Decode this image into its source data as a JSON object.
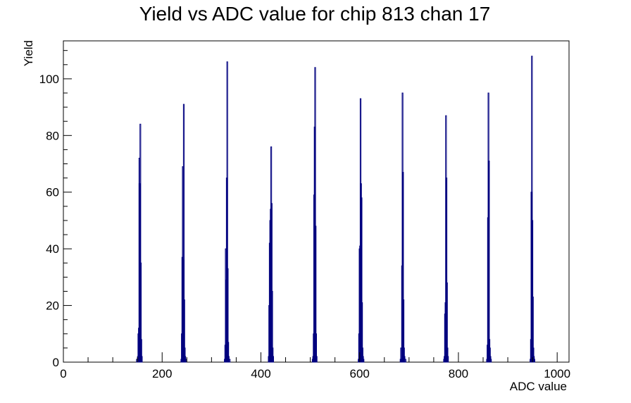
{
  "colors": {
    "series": "#00007f",
    "axis": "#000000",
    "background": "#ffffff"
  },
  "chart_data": {
    "type": "histogram",
    "title": "Yield vs ADC value for chip 813 chan 17",
    "xlabel": "ADC value",
    "ylabel": "Yield",
    "xlim": [
      0,
      1024
    ],
    "ylim": [
      0,
      113.4
    ],
    "grid": false,
    "legend": "none",
    "xticks": [
      0,
      200,
      400,
      600,
      800,
      1000
    ],
    "yticks": [
      0,
      20,
      40,
      60,
      80,
      100
    ],
    "series": [
      {
        "peaks": [
          {
            "bins": [
              [
                148,
                1
              ],
              [
                150,
                2
              ],
              [
                151,
                10
              ],
              [
                152,
                12
              ],
              [
                153,
                72
              ],
              [
                154,
                63
              ],
              [
                155,
                84
              ],
              [
                156,
                35
              ],
              [
                157,
                8
              ],
              [
                158,
                2
              ]
            ]
          },
          {
            "bins": [
              [
                238,
                1
              ],
              [
                239,
                10
              ],
              [
                240,
                37
              ],
              [
                241,
                69
              ],
              [
                242,
                36
              ],
              [
                243,
                91
              ],
              [
                244,
                22
              ],
              [
                245,
                5
              ],
              [
                246,
                2
              ],
              [
                248,
                1
              ]
            ]
          },
          {
            "bins": [
              [
                326,
                1
              ],
              [
                327,
                6
              ],
              [
                328,
                40
              ],
              [
                329,
                29
              ],
              [
                330,
                65
              ],
              [
                331,
                106
              ],
              [
                332,
                33
              ],
              [
                333,
                7
              ],
              [
                334,
                2
              ],
              [
                336,
                1
              ]
            ]
          },
          {
            "bins": [
              [
                415,
                2
              ],
              [
                416,
                20
              ],
              [
                417,
                42
              ],
              [
                418,
                50
              ],
              [
                419,
                54
              ],
              [
                420,
                76
              ],
              [
                421,
                56
              ],
              [
                422,
                25
              ],
              [
                423,
                5
              ],
              [
                424,
                2
              ]
            ]
          },
          {
            "bins": [
              [
                504,
                1
              ],
              [
                505,
                2
              ],
              [
                506,
                10
              ],
              [
                507,
                59
              ],
              [
                508,
                83
              ],
              [
                509,
                104
              ],
              [
                510,
                48
              ],
              [
                511,
                10
              ],
              [
                512,
                2
              ]
            ]
          },
          {
            "bins": [
              [
                597,
                1
              ],
              [
                598,
                10
              ],
              [
                599,
                40
              ],
              [
                600,
                41
              ],
              [
                601,
                93
              ],
              [
                602,
                63
              ],
              [
                603,
                58
              ],
              [
                604,
                21
              ],
              [
                605,
                5
              ],
              [
                606,
                2
              ],
              [
                607,
                1
              ]
            ]
          },
          {
            "bins": [
              [
                682,
                1
              ],
              [
                683,
                5
              ],
              [
                684,
                1
              ],
              [
                685,
                34
              ],
              [
                686,
                95
              ],
              [
                687,
                67
              ],
              [
                688,
                22
              ],
              [
                689,
                5
              ],
              [
                690,
                2
              ],
              [
                692,
                1
              ]
            ]
          },
          {
            "bins": [
              [
                770,
                1
              ],
              [
                771,
                2
              ],
              [
                772,
                17
              ],
              [
                773,
                21
              ],
              [
                774,
                87
              ],
              [
                775,
                65
              ],
              [
                776,
                28
              ],
              [
                777,
                5
              ],
              [
                778,
                2
              ]
            ]
          },
          {
            "bins": [
              [
                857,
                1
              ],
              [
                858,
                6
              ],
              [
                859,
                51
              ],
              [
                860,
                95
              ],
              [
                861,
                71
              ],
              [
                862,
                8
              ],
              [
                863,
                5
              ],
              [
                864,
                2
              ],
              [
                865,
                1
              ]
            ]
          },
          {
            "bins": [
              [
                945,
                1
              ],
              [
                946,
                8
              ],
              [
                947,
                60
              ],
              [
                948,
                108
              ],
              [
                949,
                50
              ],
              [
                950,
                23
              ],
              [
                951,
                5
              ],
              [
                952,
                2
              ],
              [
                953,
                1
              ]
            ]
          }
        ]
      }
    ]
  }
}
